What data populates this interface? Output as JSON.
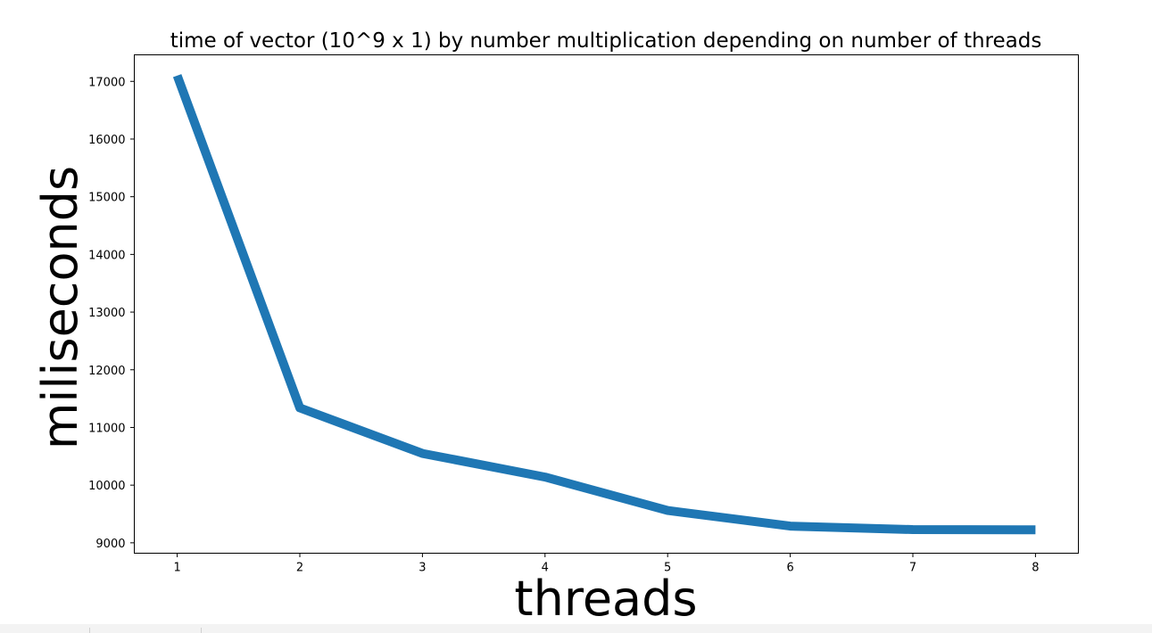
{
  "chart_data": {
    "type": "line",
    "title": "time of vector (10^9 x 1) by number multiplication depending on number of threads",
    "xlabel": "threads",
    "ylabel": "miliseconds",
    "x": [
      1,
      2,
      3,
      4,
      5,
      6,
      7,
      8
    ],
    "series": [
      {
        "values": [
          17100,
          11340,
          10550,
          10140,
          9560,
          9290,
          9230,
          9225
        ],
        "color": "#1f77b4"
      }
    ],
    "xlim": [
      0.65,
      8.35
    ],
    "ylim": [
      8820,
      17460
    ],
    "xticks": [
      1,
      2,
      3,
      4,
      5,
      6,
      7,
      8
    ],
    "xtick_labels": [
      "1",
      "2",
      "3",
      "4",
      "5",
      "6",
      "7",
      "8"
    ],
    "yticks": [
      9000,
      10000,
      11000,
      12000,
      13000,
      14000,
      15000,
      16000,
      17000
    ],
    "ytick_labels": [
      "9000",
      "10000",
      "11000",
      "12000",
      "13000",
      "14000",
      "15000",
      "16000",
      "17000"
    ],
    "grid": false,
    "legend": "none"
  }
}
